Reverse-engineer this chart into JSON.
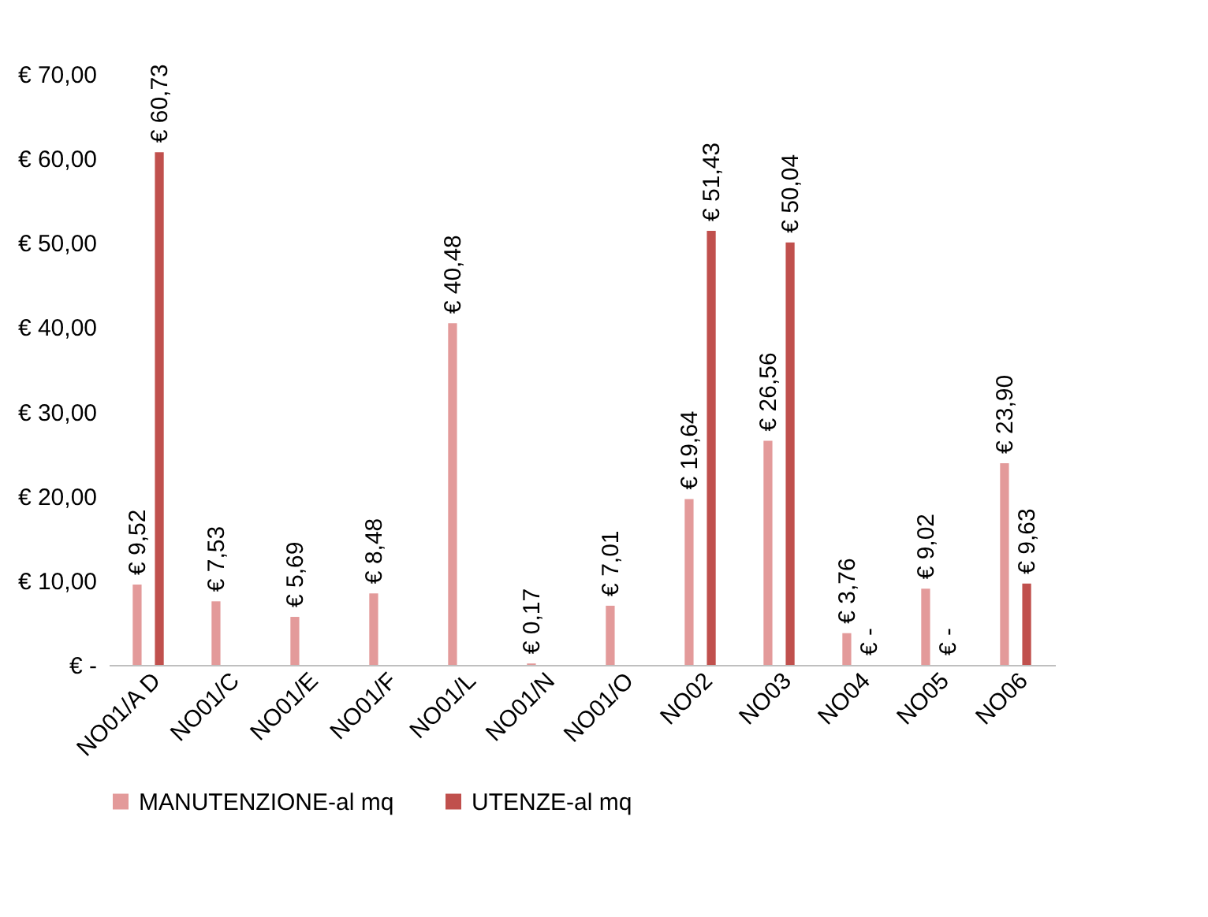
{
  "chart_data": {
    "type": "bar",
    "categories": [
      "NO01/A D",
      "NO01/C",
      "NO01/E",
      "NO01/F",
      "NO01/L",
      "NO01/N",
      "NO01/O",
      "NO02",
      "NO03",
      "NO04",
      "NO05",
      "NO06"
    ],
    "series": [
      {
        "name": "MANUTENZIONE-al mq",
        "color": "#e39a9a",
        "values": [
          9.52,
          7.53,
          5.69,
          8.48,
          40.48,
          0.17,
          7.01,
          19.64,
          26.56,
          3.76,
          9.02,
          23.9
        ],
        "value_labels": [
          "€ 9,52",
          "€ 7,53",
          "€ 5,69",
          "€ 8,48",
          "€ 40,48",
          "€ 0,17",
          "€ 7,01",
          "€ 19,64",
          "€ 26,56",
          "€ 3,76",
          "€ 9,02",
          "€ 23,90"
        ]
      },
      {
        "name": "UTENZE-al mq",
        "color": "#c0504d",
        "values": [
          60.73,
          null,
          null,
          null,
          null,
          null,
          null,
          51.43,
          50.04,
          0,
          0,
          9.63
        ],
        "value_labels": [
          "€ 60,73",
          null,
          null,
          null,
          null,
          null,
          null,
          "€ 51,43",
          "€ 50,04",
          "€ -",
          "€ -",
          "€ 9,63"
        ]
      }
    ],
    "ylim": [
      0,
      70
    ],
    "yticks": [
      {
        "value": 0,
        "label": "€ -"
      },
      {
        "value": 10,
        "label": "€ 10,00"
      },
      {
        "value": 20,
        "label": "€ 20,00"
      },
      {
        "value": 30,
        "label": "€ 30,00"
      },
      {
        "value": 40,
        "label": "€ 40,00"
      },
      {
        "value": 50,
        "label": "€ 50,00"
      },
      {
        "value": 60,
        "label": "€ 60,00"
      },
      {
        "value": 70,
        "label": "€ 70,00"
      }
    ],
    "grid": false,
    "legend": "bottom"
  }
}
